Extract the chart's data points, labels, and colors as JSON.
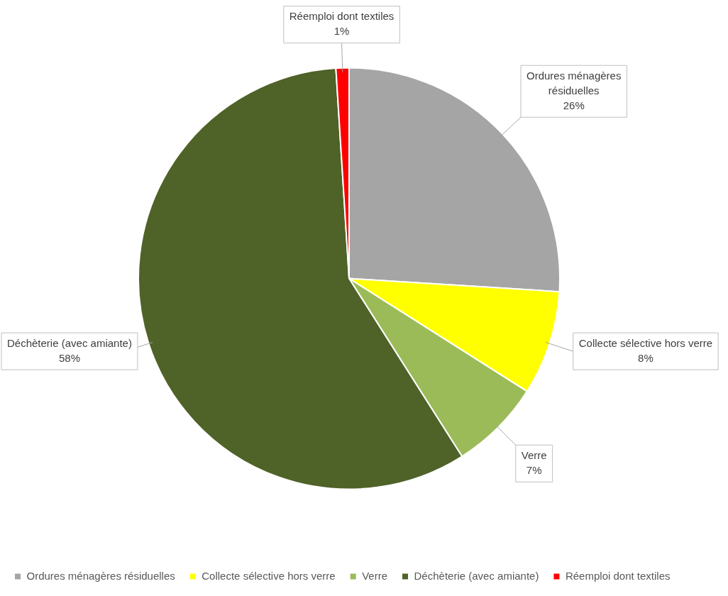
{
  "chart_data": {
    "type": "pie",
    "categories": [
      "Ordures ménagères résiduelles",
      "Collecte sélective hors verre",
      "Verre",
      "Déchèterie (avec amiante)",
      "Réemploi dont textiles"
    ],
    "values": [
      26,
      8,
      7,
      58,
      1
    ],
    "colors": [
      "#a5a5a5",
      "#ffff00",
      "#9bbb59",
      "#4f6228",
      "#ff0000"
    ],
    "value_labels": [
      "26%",
      "8%",
      "7%",
      "58%",
      "1%"
    ],
    "legend": "bottom"
  }
}
